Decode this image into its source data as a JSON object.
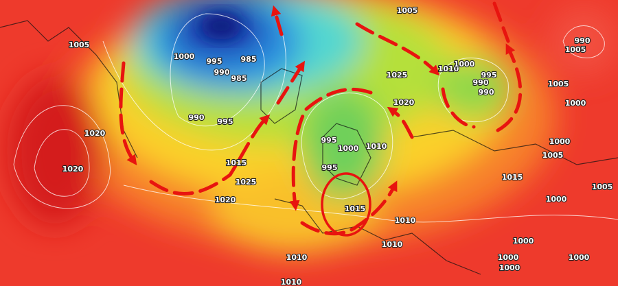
{
  "isobar_labels": [
    "1005",
    "1000",
    "995",
    "990",
    "985",
    "985",
    "990",
    "995",
    "1020",
    "1020",
    "1015",
    "1025",
    "1020",
    "1005",
    "1025",
    "1020",
    "1010",
    "1000",
    "995",
    "990",
    "990",
    "990",
    "1005",
    "1005",
    "1000",
    "1000",
    "1005",
    "1015",
    "1005",
    "1000",
    "995",
    "1000",
    "1010",
    "995",
    "1015",
    "1010",
    "1010",
    "1000",
    "1000",
    "1000",
    "1000",
    "1010",
    "1010"
  ]
}
